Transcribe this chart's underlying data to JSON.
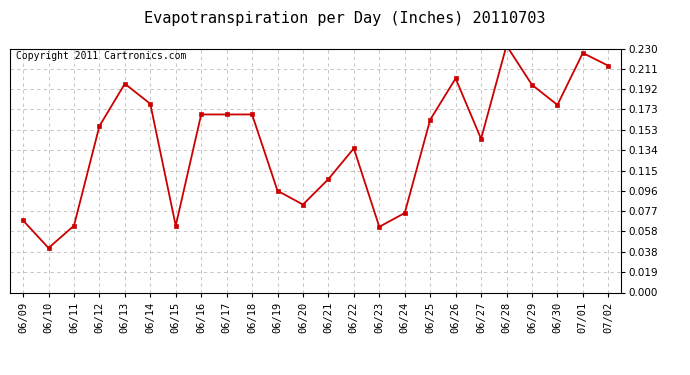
{
  "title": "Evapotranspiration per Day (Inches) 20110703",
  "copyright_text": "Copyright 2011 Cartronics.com",
  "x_labels": [
    "06/09",
    "06/10",
    "06/11",
    "06/12",
    "06/13",
    "06/14",
    "06/15",
    "06/16",
    "06/17",
    "06/18",
    "06/19",
    "06/20",
    "06/21",
    "06/22",
    "06/23",
    "06/24",
    "06/25",
    "06/26",
    "06/27",
    "06/28",
    "06/29",
    "06/30",
    "07/01",
    "07/02"
  ],
  "y_values": [
    0.068,
    0.042,
    0.063,
    0.157,
    0.197,
    0.178,
    0.063,
    0.168,
    0.168,
    0.168,
    0.096,
    0.083,
    0.107,
    0.136,
    0.062,
    0.075,
    0.163,
    0.202,
    0.145,
    0.233,
    0.196,
    0.177,
    0.226,
    0.214
  ],
  "line_color": "#cc0000",
  "marker": "s",
  "marker_size": 3,
  "ylim": [
    0.0,
    0.23
  ],
  "yticks": [
    0.0,
    0.019,
    0.038,
    0.058,
    0.077,
    0.096,
    0.115,
    0.134,
    0.153,
    0.173,
    0.192,
    0.211,
    0.23
  ],
  "background_color": "#ffffff",
  "grid_color": "#bbbbbb",
  "title_fontsize": 11,
  "tick_fontsize": 7.5,
  "copyright_fontsize": 7
}
